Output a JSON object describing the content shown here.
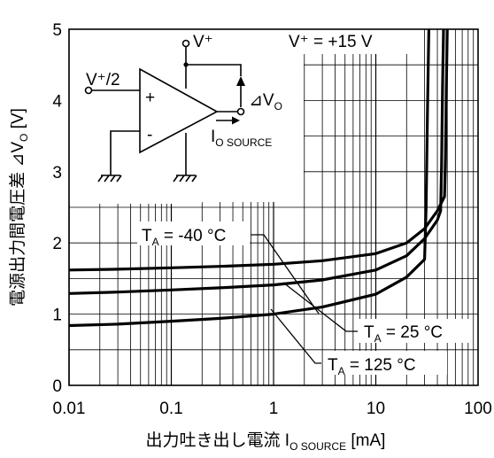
{
  "chart_data": {
    "type": "line",
    "xscale": "log",
    "xlim": [
      0.01,
      100
    ],
    "ylim": [
      0,
      5
    ],
    "grid": true,
    "xlabel": {
      "text": "出力吐き出し電流 I",
      "sub": "O SOURCE",
      "unit": " [mA]"
    },
    "ylabel": {
      "text": "電源出力間電圧差 ⊿V",
      "sub": "O",
      "unit": " [V]"
    },
    "x_ticks": [
      {
        "value": 0.01,
        "label": "0.01"
      },
      {
        "value": 0.1,
        "label": "0.1"
      },
      {
        "value": 1,
        "label": "1"
      },
      {
        "value": 10,
        "label": "10"
      },
      {
        "value": 100,
        "label": "100"
      }
    ],
    "y_ticks": [
      {
        "value": 0,
        "label": "0"
      },
      {
        "value": 1,
        "label": "1"
      },
      {
        "value": 2,
        "label": "2"
      },
      {
        "value": 3,
        "label": "3"
      },
      {
        "value": 4,
        "label": "4"
      },
      {
        "value": 5,
        "label": "5"
      }
    ],
    "condition": "V⁺ = +15 V",
    "series": [
      {
        "name": "T_A = -40 °C",
        "label_main": "T",
        "label_sub": "A",
        "label_rest": " = -40 °C",
        "x": [
          0.01,
          0.03,
          0.1,
          0.3,
          1,
          3,
          10,
          20,
          30,
          40,
          47,
          48,
          49,
          50
        ],
        "y": [
          1.62,
          1.63,
          1.65,
          1.67,
          1.7,
          1.75,
          1.85,
          2.0,
          2.2,
          2.45,
          2.65,
          3.2,
          4.2,
          5.0
        ]
      },
      {
        "name": "T_A = 25 °C",
        "label_main": "T",
        "label_sub": "A",
        "label_rest": " = 25 °C",
        "x": [
          0.01,
          0.03,
          0.1,
          0.3,
          1,
          3,
          10,
          20,
          30,
          40,
          43,
          44,
          45,
          46
        ],
        "y": [
          1.29,
          1.31,
          1.34,
          1.37,
          1.41,
          1.48,
          1.62,
          1.82,
          2.06,
          2.32,
          2.45,
          3.1,
          4.2,
          5.0
        ]
      },
      {
        "name": "T_A = 125 °C",
        "label_main": "T",
        "label_sub": "A",
        "label_rest": " = 125 °C",
        "x": [
          0.01,
          0.03,
          0.1,
          0.3,
          1,
          3,
          10,
          20,
          30,
          31,
          32,
          33
        ],
        "y": [
          0.84,
          0.86,
          0.9,
          0.94,
          1.0,
          1.1,
          1.28,
          1.52,
          1.77,
          2.5,
          3.8,
          5.0
        ]
      }
    ],
    "inset": {
      "vplus_half": "V⁺/2",
      "vplus": "V⁺",
      "plus_sign": "+",
      "minus_sign": "-",
      "delta_main": "⊿V",
      "delta_sub": "O",
      "io_main": "I",
      "io_sub": "O SOURCE"
    }
  }
}
